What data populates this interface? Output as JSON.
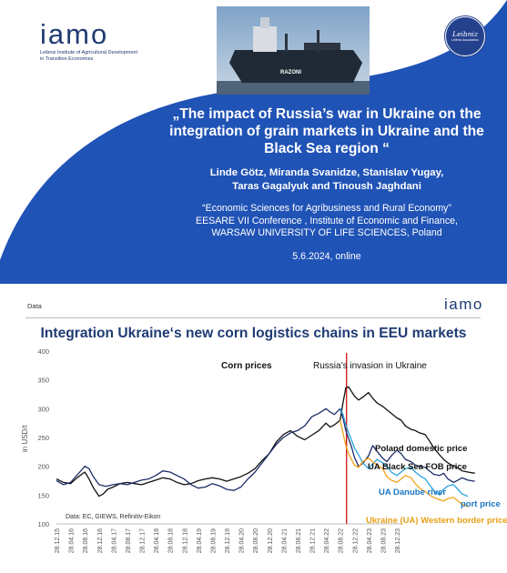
{
  "slide1": {
    "logo": {
      "text": "IAMO",
      "subtitle_line1": "Leibniz Institute of Agricultural Development",
      "subtitle_line2": "in Transition Economies"
    },
    "badge": {
      "name": "Leibniz",
      "sub": "Leibniz Association"
    },
    "ship_name": "RAZONI",
    "title": "„The impact of Russia’s war in Ukraine on the integration of grain markets in Ukraine and the Black Sea region “",
    "authors_line1": "Linde Götz, Miranda Svanidze, Stanislav Yugay,",
    "authors_line2": "Taras Gagalyuk and Tinoush Jaghdani",
    "conf_line1": "“Economic Sciences for Agribusiness and Rural Economy”",
    "conf_line2": "EESARE VII Conference , Institute of Economic and Finance,",
    "conf_line3": "WARSAW UNIVERSITY OF LIFE SCIENCES, Poland",
    "date": "5.6.2024, online",
    "colors": {
      "panel": "#2053b6",
      "logo": "#1f3b73"
    }
  },
  "slide2": {
    "label": "Data",
    "logo": "IAMO",
    "title": "Integration Ukraine‘s new corn logistics chains in EEU markets"
  },
  "chart_data": {
    "type": "line",
    "title": "Integration Ukraine‘s new corn logistics chains in EEU markets",
    "ylabel": "in USD/t",
    "xlabel": "",
    "ylim": [
      100,
      400
    ],
    "yticks": [
      100,
      150,
      200,
      250,
      300,
      350,
      400
    ],
    "x_tick_labels": [
      "28.12.15",
      "28.04.16",
      "28.08.16",
      "28.12.16",
      "28.04.17",
      "28.08.17",
      "28.12.17",
      "28.04.18",
      "28.08.18",
      "28.12.18",
      "28.04.19",
      "28.08.19",
      "28.12.19",
      "28.04.20",
      "28.08.20",
      "28.12.20",
      "28.04.21",
      "28.08.21",
      "28.12.21",
      "28.04.22",
      "28.08.22",
      "28.12.22",
      "28.04.23",
      "28.08.23",
      "28.12.23"
    ],
    "invasion_index": 20,
    "annotations": {
      "corn_prices": "Corn prices",
      "invasion": "Russia’s invasion in Ukraine",
      "source": "Data: EC, GIEWS, Refinitiv-Eikon"
    },
    "grid": false,
    "series": [
      {
        "name": "Poland domestic price",
        "color": "#111111",
        "points": [
          [
            0,
            178
          ],
          [
            0.5,
            172
          ],
          [
            1,
            170
          ],
          [
            1.5,
            181
          ],
          [
            2,
            190
          ],
          [
            2.3,
            178
          ],
          [
            2.6,
            163
          ],
          [
            3,
            148
          ],
          [
            3.3,
            152
          ],
          [
            3.6,
            160
          ],
          [
            4,
            164
          ],
          [
            4.5,
            170
          ],
          [
            5,
            172
          ],
          [
            5.5,
            170
          ],
          [
            6,
            168
          ],
          [
            6.5,
            172
          ],
          [
            7,
            176
          ],
          [
            7.5,
            180
          ],
          [
            8,
            178
          ],
          [
            8.5,
            172
          ],
          [
            9,
            168
          ],
          [
            9.5,
            170
          ],
          [
            10,
            175
          ],
          [
            10.5,
            178
          ],
          [
            11,
            180
          ],
          [
            11.5,
            178
          ],
          [
            12,
            174
          ],
          [
            12.5,
            178
          ],
          [
            13,
            182
          ],
          [
            13.5,
            188
          ],
          [
            14,
            196
          ],
          [
            14.5,
            210
          ],
          [
            15,
            222
          ],
          [
            15.5,
            242
          ],
          [
            16,
            255
          ],
          [
            16.5,
            262
          ],
          [
            17,
            252
          ],
          [
            17.5,
            246
          ],
          [
            18,
            254
          ],
          [
            18.5,
            262
          ],
          [
            19,
            275
          ],
          [
            19.3,
            268
          ],
          [
            19.6,
            272
          ],
          [
            20,
            280
          ],
          [
            20.2,
            310
          ],
          [
            20.4,
            336
          ],
          [
            20.6,
            338
          ],
          [
            20.8,
            330
          ],
          [
            21,
            322
          ],
          [
            21.3,
            315
          ],
          [
            21.6,
            320
          ],
          [
            22,
            328
          ],
          [
            22.3,
            318
          ],
          [
            22.6,
            310
          ],
          [
            23,
            304
          ],
          [
            23.3,
            298
          ],
          [
            23.6,
            292
          ],
          [
            24,
            284
          ],
          [
            24.3,
            280
          ],
          [
            24.6,
            270
          ],
          [
            25,
            264
          ],
          [
            25.3,
            262
          ],
          [
            25.6,
            258
          ],
          [
            26,
            255
          ],
          [
            26.3,
            244
          ],
          [
            26.6,
            232
          ],
          [
            27,
            220
          ],
          [
            27.3,
            212
          ],
          [
            27.6,
            206
          ],
          [
            28,
            200
          ],
          [
            28.3,
            197
          ],
          [
            28.6,
            192
          ],
          [
            29,
            190
          ],
          [
            29.5,
            188
          ]
        ],
        "label": "Poland domestic price"
      },
      {
        "name": "UA Black Sea FOB price",
        "color": "#1c2d6b",
        "points": [
          [
            0,
            175
          ],
          [
            0.5,
            168
          ],
          [
            1,
            172
          ],
          [
            1.5,
            186
          ],
          [
            2,
            200
          ],
          [
            2.3,
            196
          ],
          [
            2.6,
            182
          ],
          [
            3,
            168
          ],
          [
            3.5,
            165
          ],
          [
            4,
            168
          ],
          [
            4.5,
            170
          ],
          [
            5,
            168
          ],
          [
            5.5,
            172
          ],
          [
            6,
            176
          ],
          [
            6.5,
            178
          ],
          [
            7,
            184
          ],
          [
            7.5,
            192
          ],
          [
            8,
            190
          ],
          [
            8.5,
            184
          ],
          [
            9,
            178
          ],
          [
            9.5,
            168
          ],
          [
            10,
            162
          ],
          [
            10.5,
            164
          ],
          [
            11,
            170
          ],
          [
            11.5,
            166
          ],
          [
            12,
            160
          ],
          [
            12.5,
            158
          ],
          [
            13,
            164
          ],
          [
            13.5,
            178
          ],
          [
            14,
            190
          ],
          [
            14.5,
            206
          ],
          [
            15,
            222
          ],
          [
            15.5,
            238
          ],
          [
            16,
            250
          ],
          [
            16.5,
            258
          ],
          [
            17,
            262
          ],
          [
            17.5,
            270
          ],
          [
            18,
            286
          ],
          [
            18.5,
            292
          ],
          [
            19,
            300
          ],
          [
            19.3,
            294
          ],
          [
            19.6,
            290
          ],
          [
            20,
            300
          ],
          [
            20.2,
            284
          ],
          [
            20.4,
            262
          ],
          [
            20.6,
            248
          ],
          [
            20.8,
            234
          ],
          [
            21,
            216
          ],
          [
            21.3,
            200
          ],
          [
            21.6,
            205
          ],
          [
            22,
            218
          ],
          [
            22.3,
            236
          ],
          [
            22.6,
            226
          ],
          [
            23,
            214
          ],
          [
            23.3,
            208
          ],
          [
            23.6,
            218
          ],
          [
            24,
            228
          ],
          [
            24.3,
            222
          ],
          [
            24.6,
            212
          ],
          [
            25,
            208
          ],
          [
            25.3,
            202
          ],
          [
            25.6,
            200
          ],
          [
            26,
            198
          ],
          [
            26.3,
            192
          ],
          [
            26.6,
            186
          ],
          [
            27,
            184
          ],
          [
            27.3,
            188
          ],
          [
            27.6,
            178
          ],
          [
            28,
            172
          ],
          [
            28.3,
            176
          ],
          [
            28.6,
            180
          ],
          [
            29,
            176
          ],
          [
            29.5,
            174
          ]
        ],
        "label": "UA Black Sea FOB price"
      },
      {
        "name": "UA Danube river port price",
        "color": "#29a3dc",
        "points": [
          [
            20,
            300
          ],
          [
            20.2,
            290
          ],
          [
            20.4,
            272
          ],
          [
            20.6,
            258
          ],
          [
            20.8,
            246
          ],
          [
            21,
            232
          ],
          [
            21.3,
            220
          ],
          [
            21.6,
            206
          ],
          [
            22,
            196
          ],
          [
            22.3,
            204
          ],
          [
            22.6,
            212
          ],
          [
            23,
            206
          ],
          [
            23.3,
            200
          ],
          [
            23.6,
            190
          ],
          [
            24,
            184
          ],
          [
            24.3,
            190
          ],
          [
            24.6,
            196
          ],
          [
            25,
            198
          ],
          [
            25.3,
            190
          ],
          [
            25.6,
            184
          ],
          [
            26,
            178
          ],
          [
            26.3,
            168
          ],
          [
            26.6,
            158
          ],
          [
            27,
            150
          ],
          [
            27.3,
            160
          ],
          [
            27.6,
            166
          ],
          [
            28,
            168
          ],
          [
            28.3,
            160
          ],
          [
            28.6,
            152
          ],
          [
            29,
            148
          ]
        ],
        "label": "UA Danube river port price"
      },
      {
        "name": "Ukraine (UA) Western border price",
        "color": "#f2a218",
        "points": [
          [
            20,
            280
          ],
          [
            20.2,
            258
          ],
          [
            20.4,
            236
          ],
          [
            20.6,
            222
          ],
          [
            20.8,
            212
          ],
          [
            21,
            202
          ],
          [
            21.3,
            198
          ],
          [
            21.6,
            208
          ],
          [
            22,
            214
          ],
          [
            22.3,
            208
          ],
          [
            22.6,
            202
          ],
          [
            23,
            196
          ],
          [
            23.3,
            182
          ],
          [
            23.6,
            176
          ],
          [
            24,
            172
          ],
          [
            24.3,
            178
          ],
          [
            24.6,
            184
          ],
          [
            25,
            180
          ],
          [
            25.3,
            170
          ],
          [
            25.6,
            162
          ],
          [
            26,
            156
          ],
          [
            26.3,
            150
          ],
          [
            26.6,
            146
          ],
          [
            27,
            142
          ],
          [
            27.3,
            140
          ],
          [
            27.6,
            144
          ],
          [
            28,
            146
          ],
          [
            28.3,
            140
          ],
          [
            28.6,
            134
          ],
          [
            29,
            130
          ]
        ],
        "label": "Ukraine (UA) Western border price"
      }
    ]
  }
}
